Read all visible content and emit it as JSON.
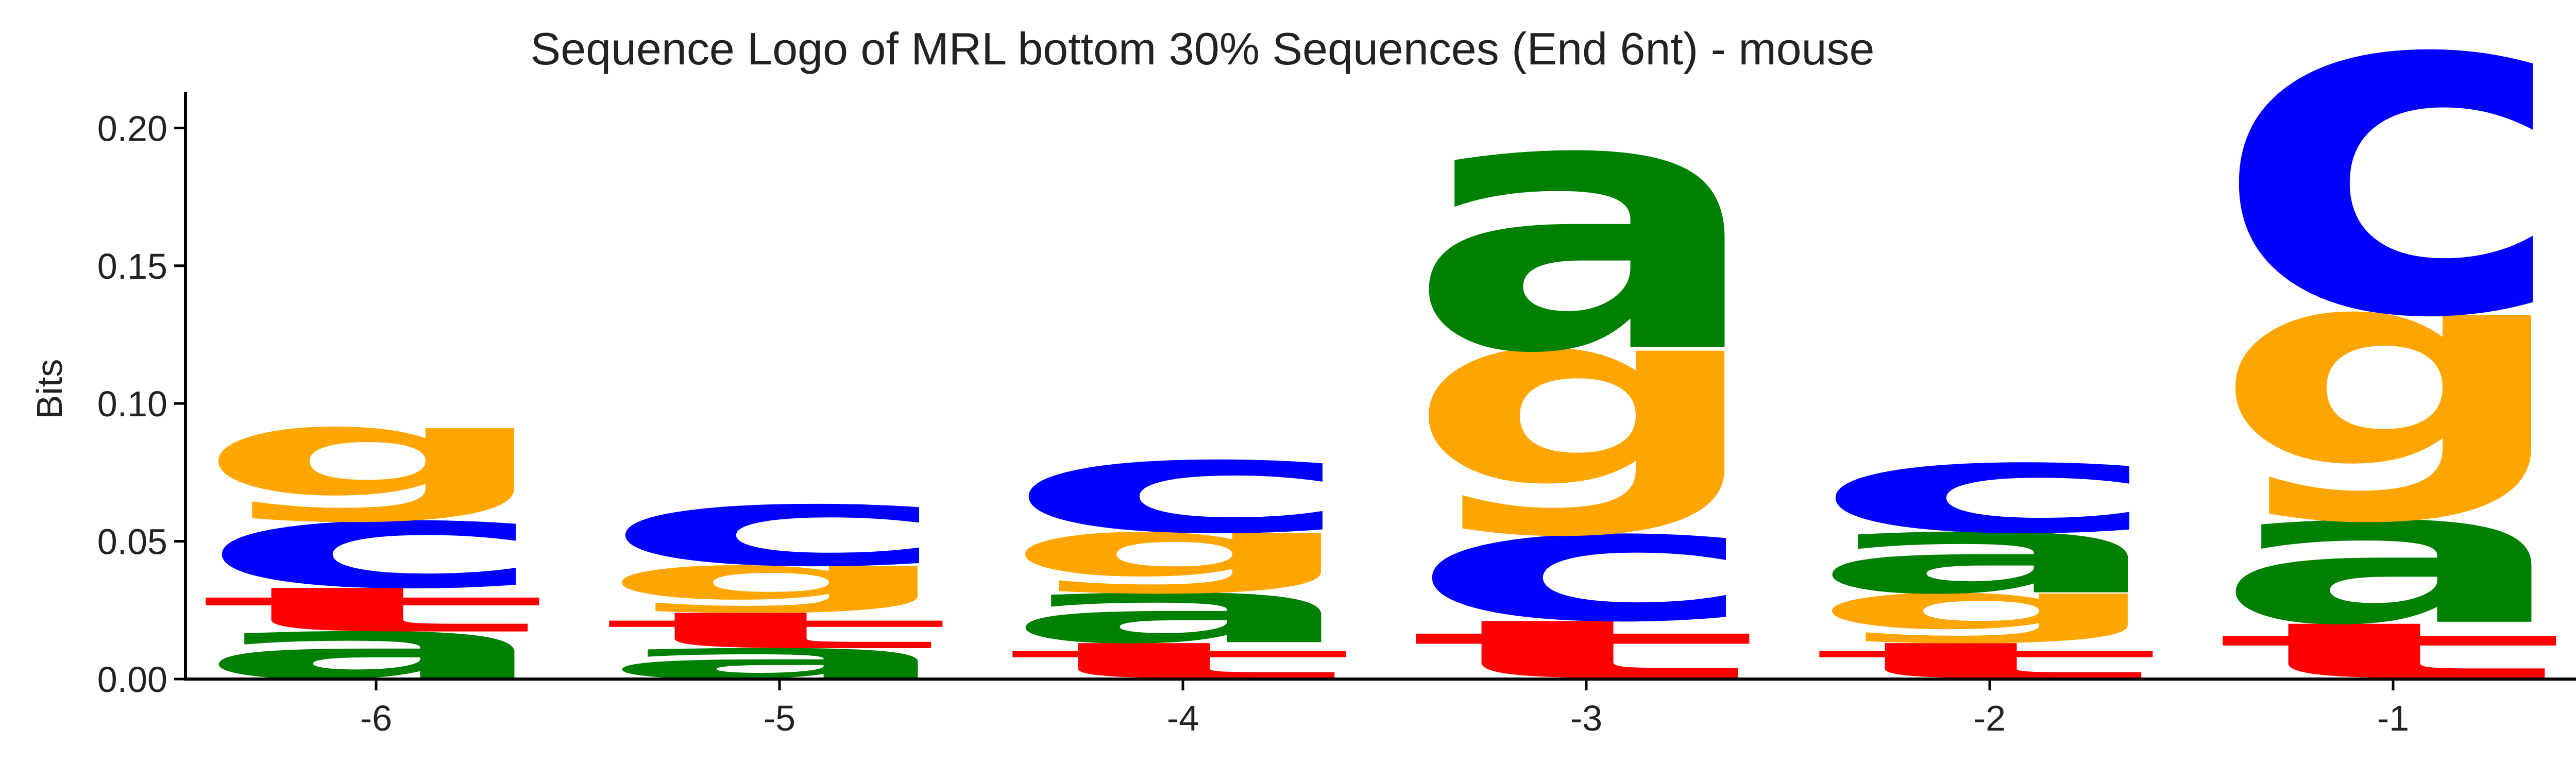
{
  "chart_data": {
    "type": "sequence_logo",
    "title": "Sequence Logo of MRL bottom 30% Sequences (End 6nt) - mouse",
    "ylabel": "Bits",
    "xlabel": "",
    "ylim": [
      0,
      0.224
    ],
    "yticks": [
      "0.00",
      "0.05",
      "0.10",
      "0.15",
      "0.20"
    ],
    "ytick_values": [
      0,
      0.05,
      0.1,
      0.15,
      0.2
    ],
    "grid": false,
    "colors": {
      "a": "#008000",
      "c": "#0000ff",
      "g": "#ffa500",
      "t": "#ff0000"
    },
    "positions": [
      {
        "label": "-6",
        "stack": [
          {
            "base": "a",
            "bits": 0.017
          },
          {
            "base": "t",
            "bits": 0.016
          },
          {
            "base": "c",
            "bits": 0.024
          },
          {
            "base": "g",
            "bits": 0.034
          }
        ]
      },
      {
        "label": "-5",
        "stack": [
          {
            "base": "a",
            "bits": 0.011
          },
          {
            "base": "t",
            "bits": 0.013
          },
          {
            "base": "g",
            "bits": 0.017
          },
          {
            "base": "c",
            "bits": 0.022
          }
        ]
      },
      {
        "label": "-4",
        "stack": [
          {
            "base": "t",
            "bits": 0.013
          },
          {
            "base": "a",
            "bits": 0.018
          },
          {
            "base": "g",
            "bits": 0.022
          },
          {
            "base": "c",
            "bits": 0.026
          }
        ]
      },
      {
        "label": "-3",
        "stack": [
          {
            "base": "t",
            "bits": 0.021
          },
          {
            "base": "c",
            "bits": 0.031
          },
          {
            "base": "g",
            "bits": 0.067
          },
          {
            "base": "a",
            "bits": 0.071
          }
        ]
      },
      {
        "label": "-2",
        "stack": [
          {
            "base": "t",
            "bits": 0.013
          },
          {
            "base": "g",
            "bits": 0.018
          },
          {
            "base": "a",
            "bits": 0.022
          },
          {
            "base": "c",
            "bits": 0.025
          }
        ]
      },
      {
        "label": "-1",
        "stack": [
          {
            "base": "t",
            "bits": 0.02
          },
          {
            "base": "a",
            "bits": 0.037
          },
          {
            "base": "g",
            "bits": 0.075
          },
          {
            "base": "c",
            "bits": 0.094
          }
        ]
      }
    ]
  }
}
